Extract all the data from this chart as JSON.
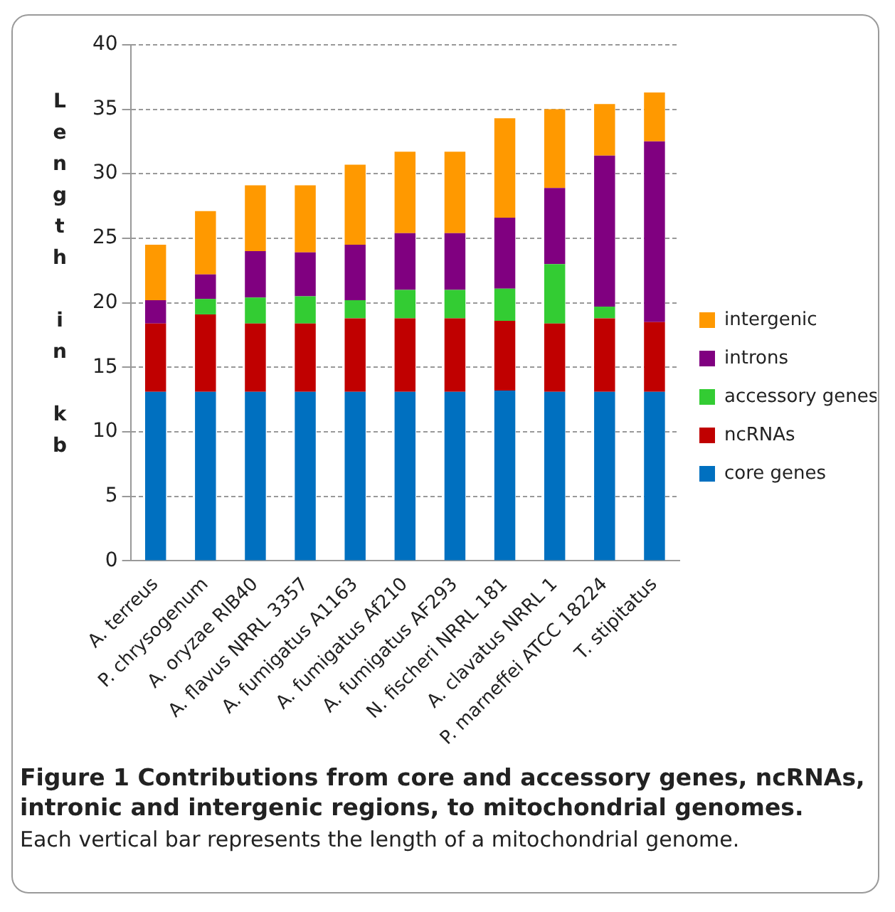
{
  "chart_data": {
    "type": "bar",
    "stacked": true,
    "title": "Figure 1 Contributions from core and accessory genes, ncRNAs, intronic and intergenic regions, to mitochondrial genomes.",
    "annotations": [
      "Each vertical bar represents the length of a mitochondrial genome."
    ],
    "ylabel": "Length in kb",
    "categories": [
      "A. terreus",
      "P. chrysogenum",
      "A. oryzae RIB40",
      "A. flavus NRRL 3357",
      "A. fumigatus A1163",
      "A. fumigatus Af210",
      "A. fumigatus AF293",
      "N. fischeri NRRL 181",
      "A. clavatus NRRL 1",
      "P. marneffei ATCC 18224",
      "T. stipitatus"
    ],
    "series": [
      {
        "name": "core genes",
        "color": "#0070c0",
        "values": [
          13.1,
          13.1,
          13.1,
          13.1,
          13.1,
          13.1,
          13.1,
          13.2,
          13.1,
          13.1,
          13.1
        ]
      },
      {
        "name": "ncRNAs",
        "color": "#c00000",
        "values": [
          5.3,
          6.0,
          5.3,
          5.3,
          5.7,
          5.7,
          5.7,
          5.4,
          5.3,
          5.7,
          5.4
        ]
      },
      {
        "name": "accessory genes",
        "color": "#33cc33",
        "values": [
          0,
          1.2,
          2.0,
          2.1,
          1.4,
          2.2,
          2.2,
          2.5,
          4.6,
          0.9,
          0
        ]
      },
      {
        "name": "introns",
        "color": "#800080",
        "values": [
          1.8,
          1.9,
          3.6,
          3.4,
          4.3,
          4.4,
          4.4,
          5.5,
          5.9,
          11.7,
          14.0
        ]
      },
      {
        "name": "intergenic",
        "color": "#ff9900",
        "values": [
          4.3,
          4.9,
          5.1,
          5.2,
          6.2,
          6.3,
          6.3,
          7.7,
          6.1,
          4.0,
          3.8
        ]
      }
    ],
    "ylim": [
      0,
      40
    ],
    "yticks": [
      0,
      5,
      10,
      15,
      20,
      25,
      30,
      35,
      40
    ],
    "grid": "y",
    "legend": "right"
  }
}
